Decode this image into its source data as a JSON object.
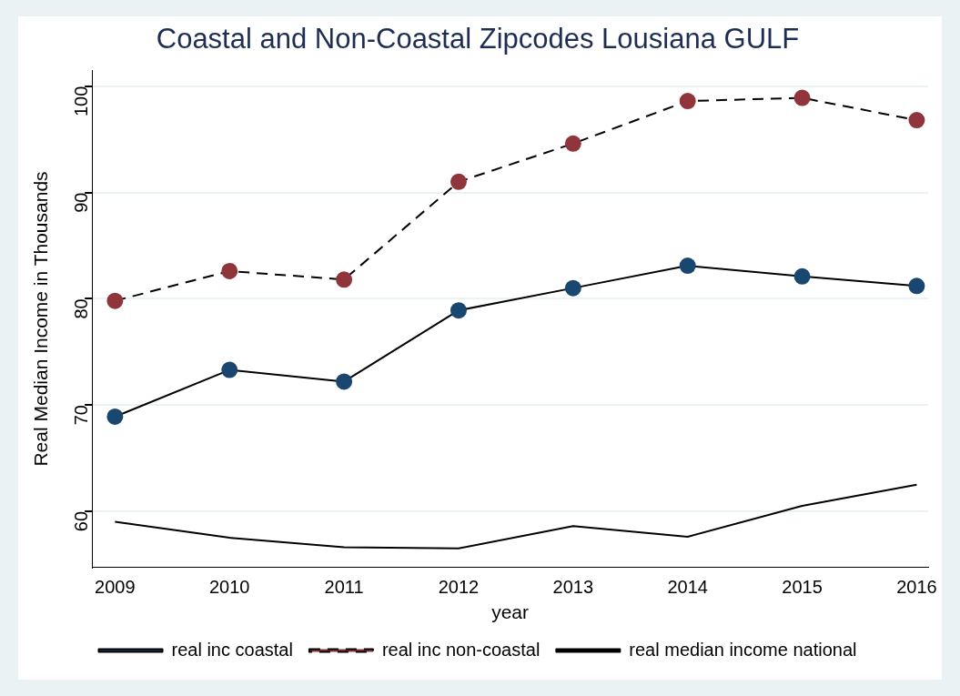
{
  "chart_data": {
    "type": "line",
    "title": "Coastal and Non-Coastal Zipcodes Lousiana GULF",
    "xlabel": "year",
    "ylabel": "Real Median Income in Thousands",
    "x": [
      2009,
      2010,
      2011,
      2012,
      2013,
      2014,
      2015,
      2016
    ],
    "xlim": [
      2008.8,
      2016.1
    ],
    "xticks": [
      2009,
      2010,
      2011,
      2012,
      2013,
      2014,
      2015,
      2016
    ],
    "ylim": [
      54.7,
      101.5
    ],
    "yticks": [
      60,
      70,
      80,
      90,
      100
    ],
    "grid": "y",
    "legend": "bottom",
    "series": [
      {
        "name": "real inc coastal",
        "color": "#1a476f",
        "marker": "circle",
        "line_style": "solid",
        "values": [
          68.9,
          73.3,
          72.2,
          78.9,
          81.0,
          83.1,
          82.1,
          81.2
        ]
      },
      {
        "name": "real inc non-coastal",
        "color": "#90353b",
        "marker": "circle",
        "line_style": "dashed",
        "values": [
          79.8,
          82.6,
          81.8,
          91.0,
          94.6,
          98.6,
          98.9,
          96.8
        ]
      },
      {
        "name": "real median income national",
        "color": "#000000",
        "marker": "none",
        "line_style": "solid",
        "values": [
          59.0,
          57.5,
          56.6,
          56.5,
          58.6,
          57.6,
          60.5,
          62.5
        ]
      }
    ]
  }
}
